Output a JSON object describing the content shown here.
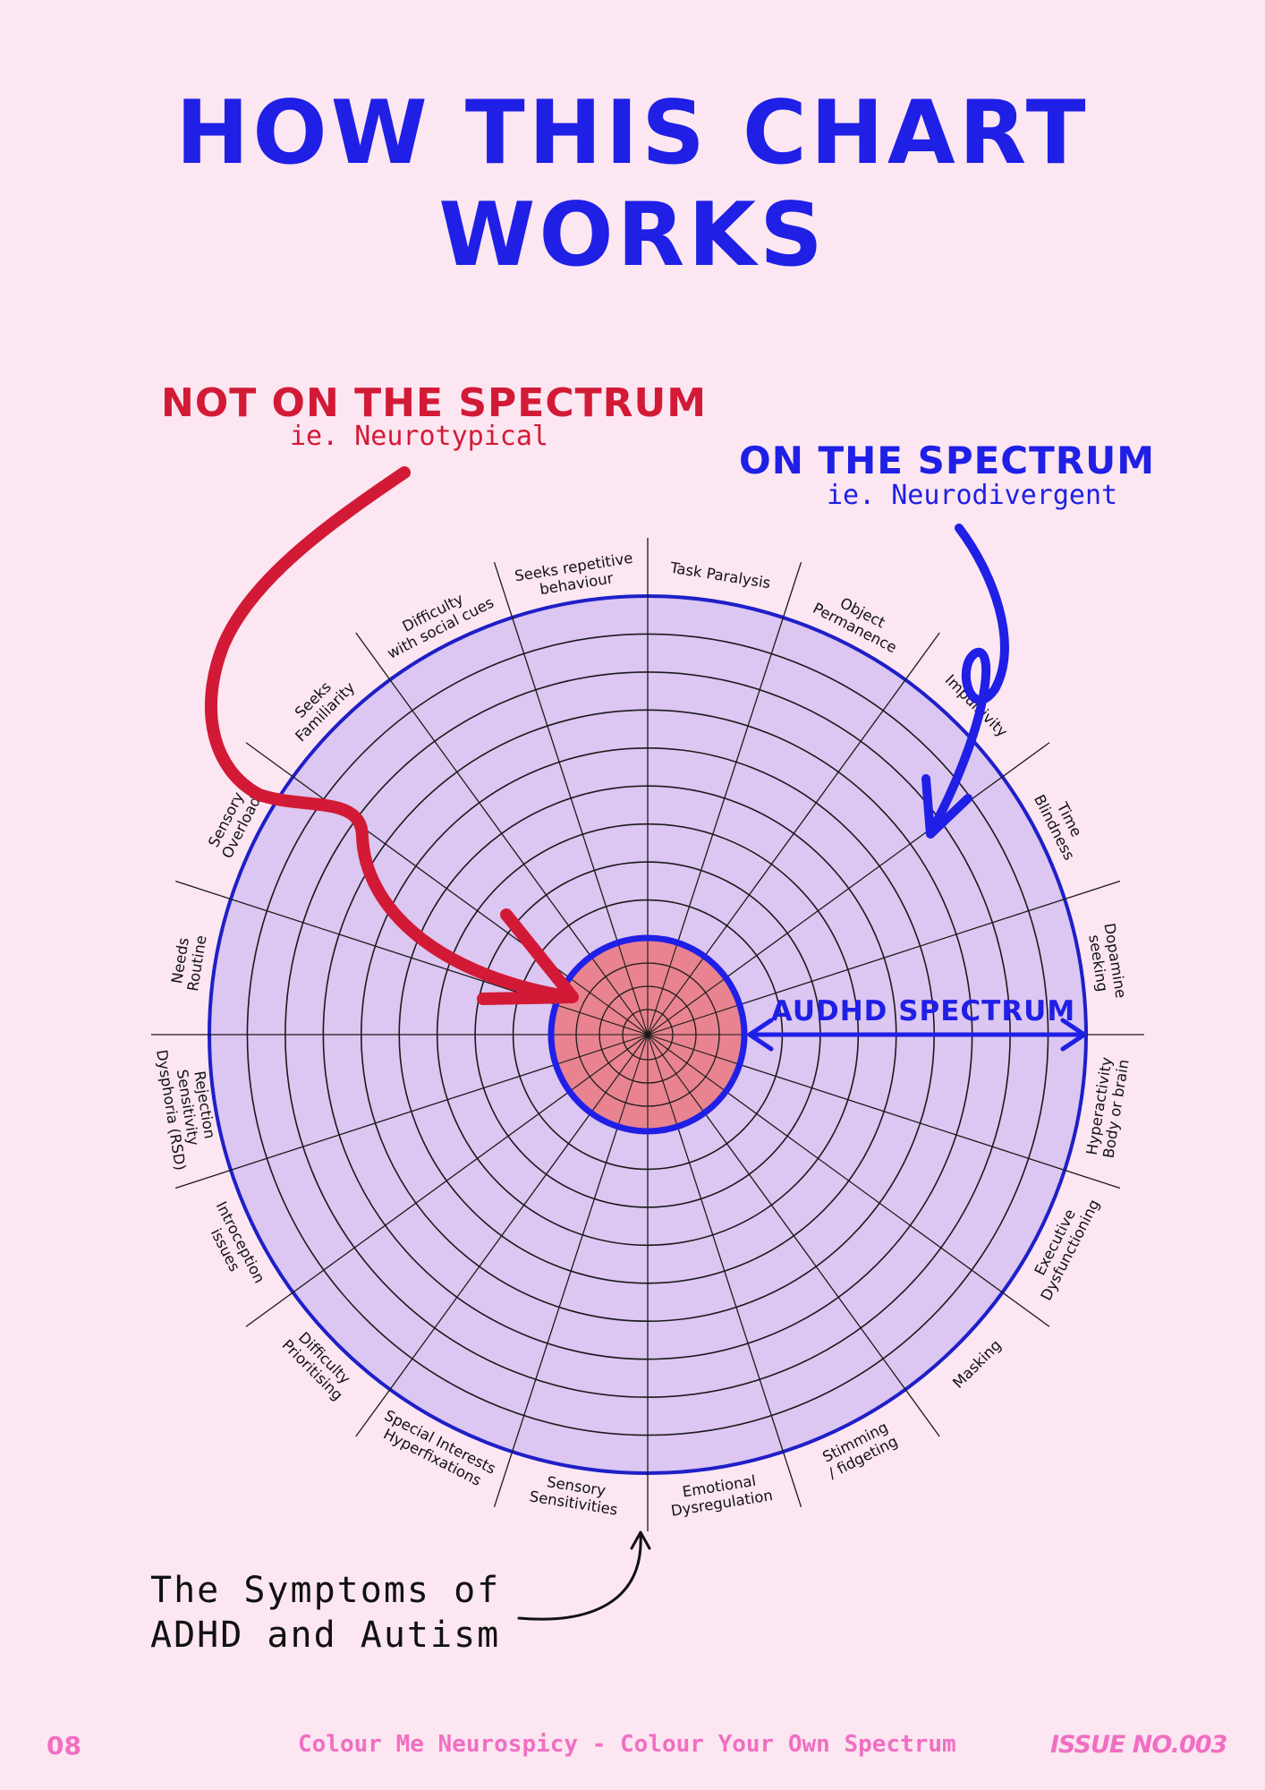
{
  "page": {
    "title": "HOW THIS CHART WORKS"
  },
  "not_on_spectrum": {
    "heading": "NOT ON THE SPECTRUM",
    "subheading": "ie. Neurotypical"
  },
  "on_spectrum": {
    "heading": "ON THE SPECTRUM",
    "subheading": "ie. Neurodivergent"
  },
  "spectrum_label": "AUDHD SPECTRUM",
  "symptoms_caption": {
    "line1": "The Symptoms of",
    "line2": "ADHD and Autism"
  },
  "wheel": {
    "ring_count": 10,
    "segments": [
      {
        "lines": [
          "Task Paralysis"
        ]
      },
      {
        "lines": [
          "Object",
          "Permanence"
        ]
      },
      {
        "lines": [
          "Impulsivity"
        ]
      },
      {
        "lines": [
          "Time",
          "Blindness"
        ]
      },
      {
        "lines": [
          "Dopamine",
          "seeking"
        ]
      },
      {
        "lines": [
          "Hyperactivity",
          "Body or brain"
        ]
      },
      {
        "lines": [
          "Executive",
          "Dysfunctioning"
        ]
      },
      {
        "lines": [
          "Masking"
        ]
      },
      {
        "lines": [
          "Stimming",
          "/ fidgeting"
        ]
      },
      {
        "lines": [
          "Emotional",
          "Dysregulation"
        ]
      },
      {
        "lines": [
          "Sensory",
          "Sensitivities"
        ]
      },
      {
        "lines": [
          "Special Interests",
          "Hyperfixations"
        ]
      },
      {
        "lines": [
          "Difficulty",
          "Prioritising"
        ]
      },
      {
        "lines": [
          "Introception",
          "issues"
        ]
      },
      {
        "lines": [
          "Rejection",
          "Sensitivity",
          "Dysphoria (RSD)"
        ]
      },
      {
        "lines": [
          "Needs",
          "Routine"
        ]
      },
      {
        "lines": [
          "Sensory",
          "Overload"
        ]
      },
      {
        "lines": [
          "Seeks",
          "Familiarity"
        ]
      },
      {
        "lines": [
          "Difficulty",
          "with social cues"
        ]
      },
      {
        "lines": [
          "Seeks repetitive",
          "behaviour"
        ]
      }
    ]
  },
  "colors": {
    "background": "#fce6f1",
    "title_blue": "#1f1fe6",
    "neurotypical_red": "#d21a36",
    "wheel_fill": "#dcc6f2",
    "center_fill": "#e8838f",
    "footer_pink": "#f06fc2"
  },
  "footer": {
    "page_number": "08",
    "publication": "Colour Me Neurospicy - Colour Your Own Spectrum",
    "issue": "ISSUE NO.003"
  }
}
